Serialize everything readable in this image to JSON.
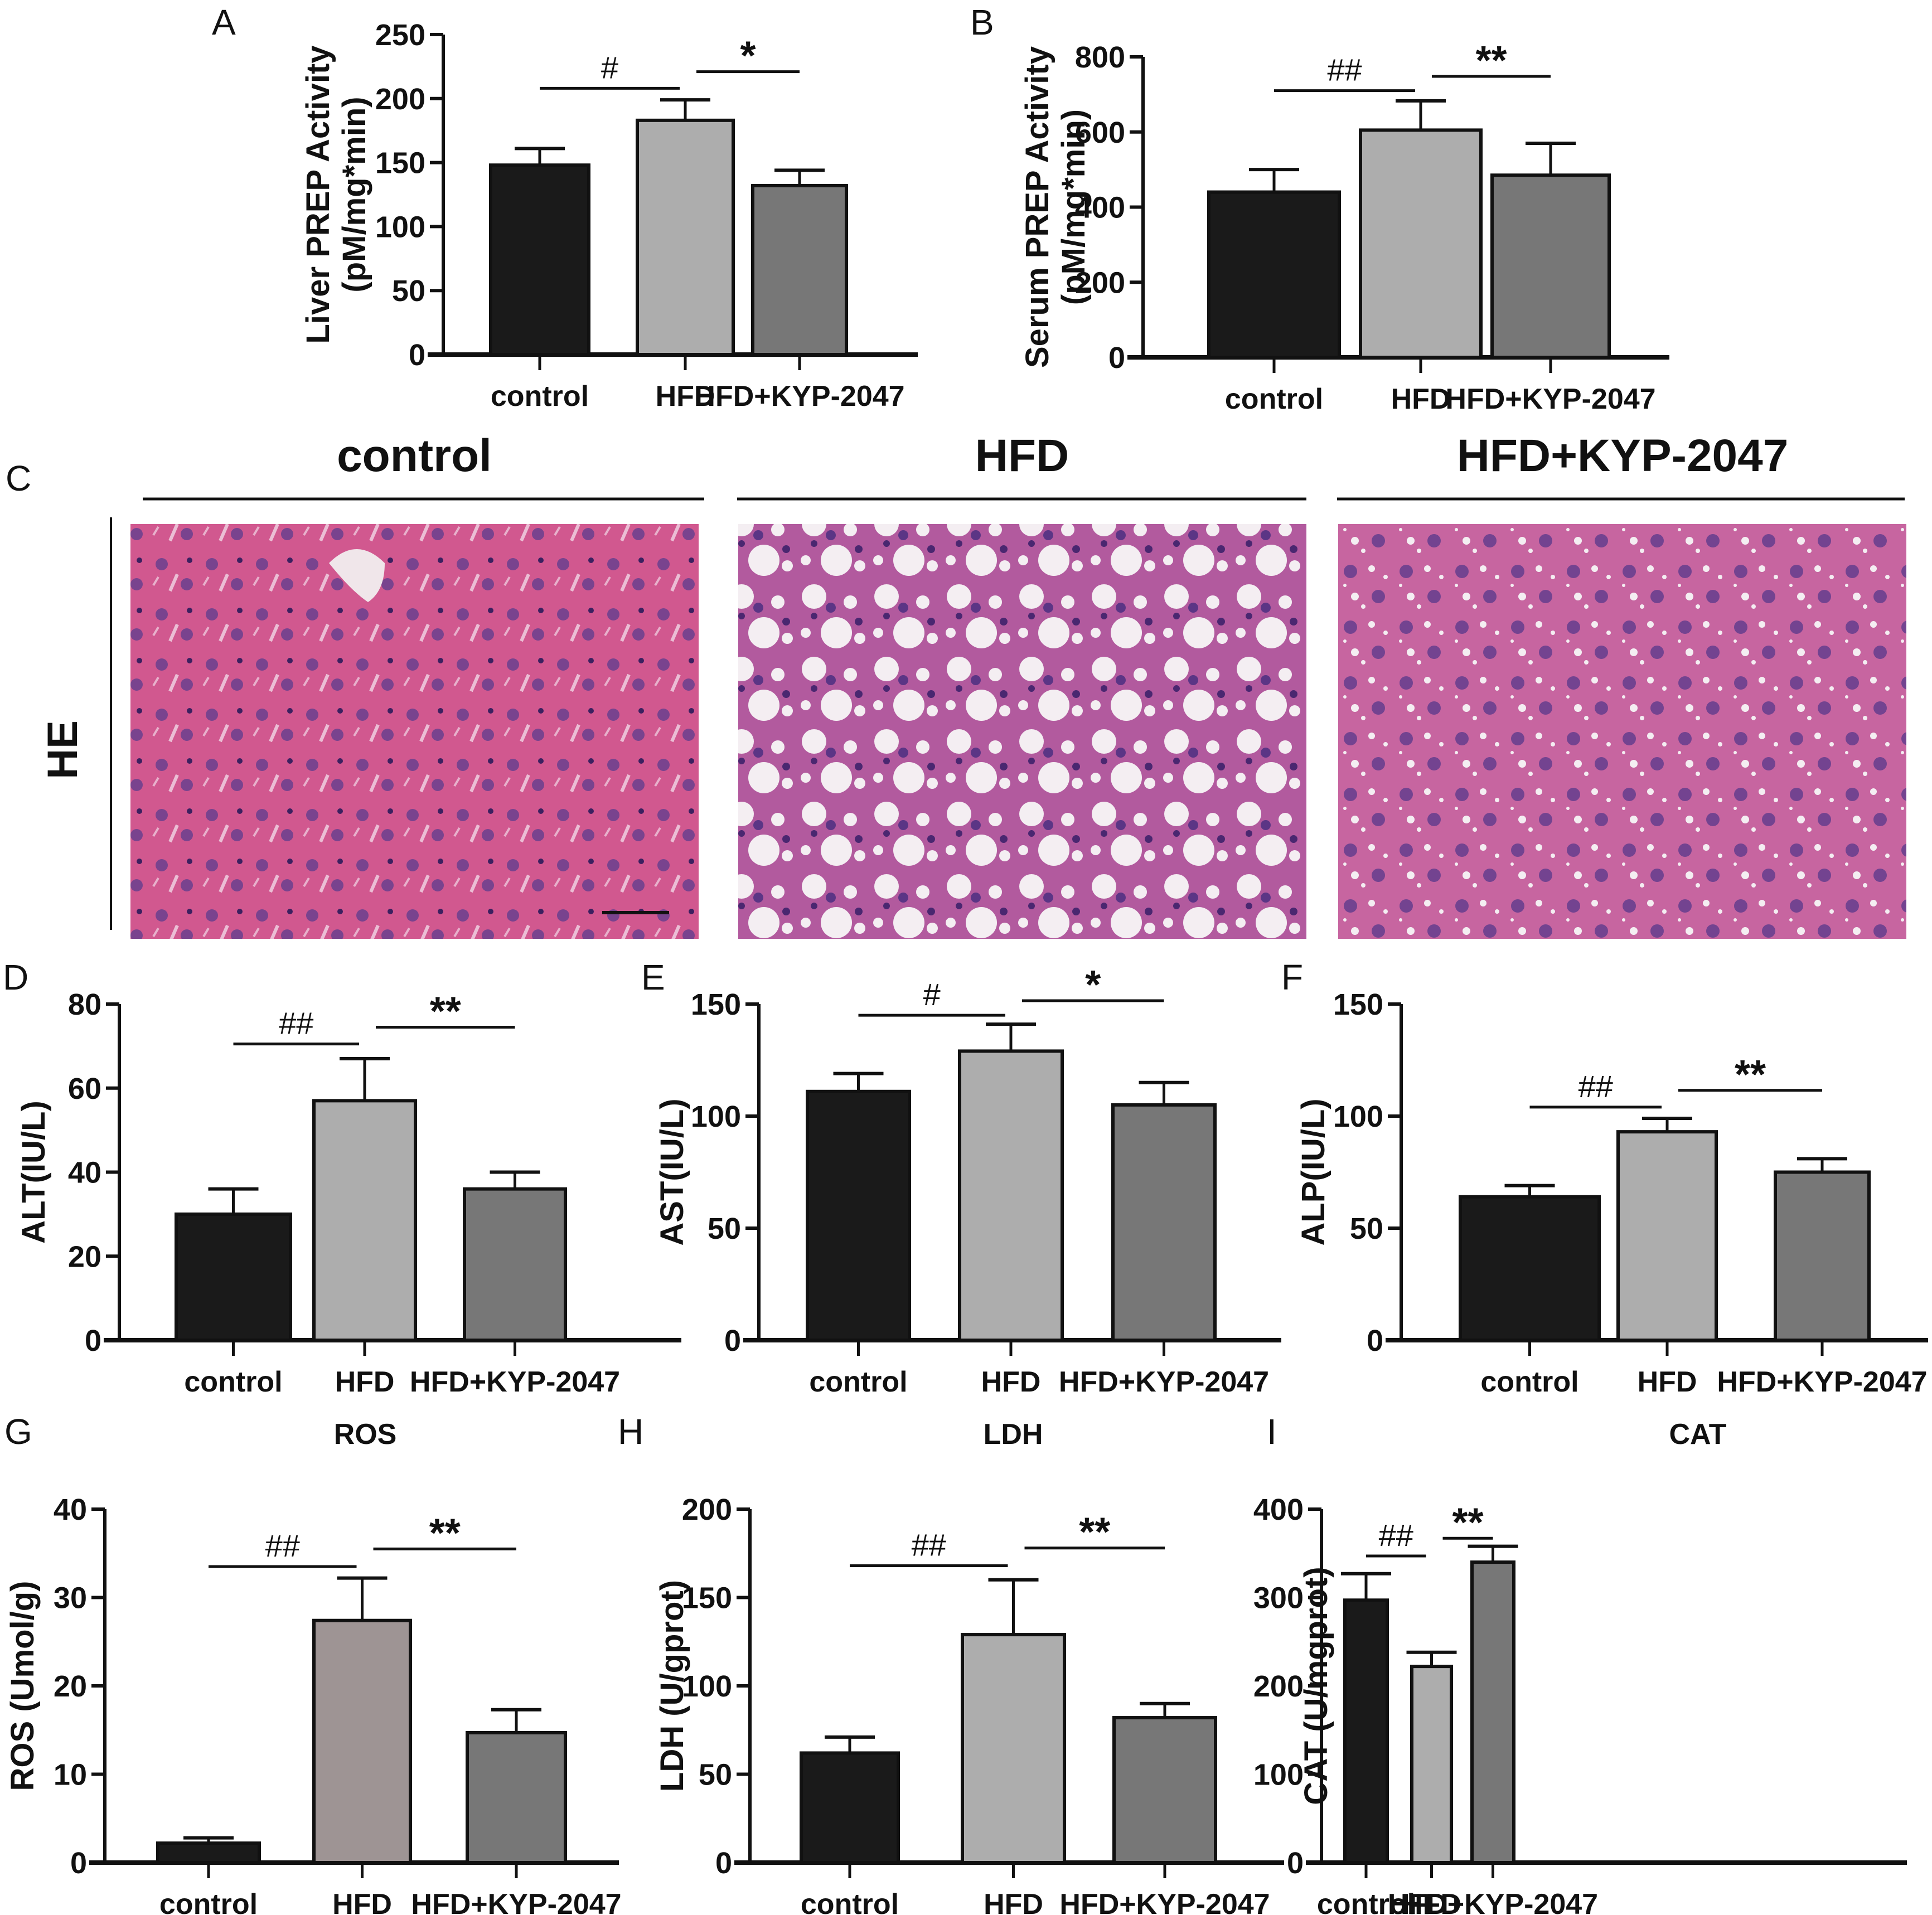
{
  "figure": {
    "colors": {
      "control": "#1a1a1a",
      "hfd": "#adadad",
      "hfd_ros": "#9e9494",
      "kyp": "#777777",
      "axis": "#111111",
      "tissue_pink": "#d1588f",
      "nucleus_purple": "#6a3f8e",
      "fat_vacuole": "#f4eef2"
    },
    "histology": {
      "panel_letter": "C",
      "row_label": "HE",
      "columns": [
        {
          "title": "control",
          "description": "normal liver tissue, central vein, no lipid droplets"
        },
        {
          "title": "HFD",
          "description": "liver tissue with many large lipid vacuoles"
        },
        {
          "title": "HFD+KYP-2047",
          "description": "liver tissue with fewer, smaller lipid vacuoles"
        }
      ],
      "scale_bar": "scale bar on control image"
    }
  },
  "chart_data": [
    {
      "panel": "A",
      "type": "bar",
      "title": "",
      "ylabel": "Liver PREP Activity (pM/mg*min)",
      "ylabel_lines": [
        "Liver PREP Activity",
        "(pM/mg*min)"
      ],
      "categories": [
        "control",
        "HFD",
        "HFD+KYP-2047"
      ],
      "values": [
        148,
        183,
        132
      ],
      "errors": [
        13,
        16,
        12
      ],
      "ylim": [
        0,
        250
      ],
      "yticks": [
        0,
        50,
        100,
        150,
        200,
        250
      ],
      "significance": [
        {
          "from": 0,
          "to": 1,
          "label": "#",
          "y": 208
        },
        {
          "from": 1,
          "to": 2,
          "label": "*",
          "y": 221
        }
      ],
      "geom": {
        "axis_x": 795,
        "y_top": 62,
        "y_zero": 636,
        "axis_end": 1646,
        "bars": [
          [
            880,
            1056
          ],
          [
            1143,
            1315
          ],
          [
            1350,
            1518
          ]
        ],
        "letter_x": 380,
        "letter_y": 62,
        "label_x": 590,
        "label2_x": 655
      }
    },
    {
      "panel": "B",
      "type": "bar",
      "title": "",
      "ylabel": "Serum PREP Activity (pM/mg*min)",
      "ylabel_lines": [
        "Serum PREP Activity",
        "(pM/mg*min)"
      ],
      "categories": [
        "control",
        "HFD",
        "HFD+KYP-2047"
      ],
      "values": [
        440,
        605,
        485
      ],
      "errors": [
        60,
        78,
        85
      ],
      "ylim": [
        0,
        800
      ],
      "yticks": [
        0,
        200,
        400,
        600,
        800
      ],
      "significance": [
        {
          "from": 0,
          "to": 1,
          "label": "##",
          "y": 710
        },
        {
          "from": 1,
          "to": 2,
          "label": "**",
          "y": 748
        }
      ],
      "geom": {
        "axis_x": 2050,
        "y_top": 102,
        "y_zero": 641,
        "axis_end": 2994,
        "bars": [
          [
            2168,
            2402
          ],
          [
            2440,
            2656
          ],
          [
            2676,
            2886
          ]
        ],
        "letter_x": 1740,
        "letter_y": 62,
        "label_x": 1880,
        "label2_x": 1945
      }
    },
    {
      "panel": "D",
      "type": "bar",
      "title": "",
      "ylabel": "ALT(IU/L)",
      "ylabel_lines": [
        "ALT(IU/L)"
      ],
      "categories": [
        "control",
        "HFD",
        "HFD+KYP-2047"
      ],
      "values": [
        30,
        57,
        36
      ],
      "errors": [
        6,
        10,
        4
      ],
      "ylim": [
        0,
        80
      ],
      "yticks": [
        0,
        20,
        40,
        60,
        80
      ],
      "significance": [
        {
          "from": 0,
          "to": 1,
          "label": "##",
          "y": 70.5
        },
        {
          "from": 1,
          "to": 2,
          "label": "**",
          "y": 74.5
        }
      ],
      "geom": {
        "axis_x": 214,
        "y_top": 1801,
        "y_zero": 2404,
        "axis_end": 1222,
        "bars": [
          [
            316,
            521
          ],
          [
            563,
            745
          ],
          [
            833,
            1014
          ]
        ],
        "letter_x": 5,
        "letter_y": 1775,
        "label_x": 80,
        "label2_x": 0
      }
    },
    {
      "panel": "E",
      "type": "bar",
      "title": "",
      "ylabel": "AST(IU/L)",
      "ylabel_lines": [
        "AST(IU/L)"
      ],
      "categories": [
        "control",
        "HFD",
        "HFD+KYP-2047"
      ],
      "values": [
        111,
        129,
        105
      ],
      "errors": [
        8,
        12,
        10
      ],
      "ylim": [
        0,
        150
      ],
      "yticks": [
        0,
        50,
        100,
        150
      ],
      "significance": [
        {
          "from": 0,
          "to": 1,
          "label": "#",
          "y": 145
        },
        {
          "from": 1,
          "to": 2,
          "label": "*",
          "y": 151.5
        }
      ],
      "geom": {
        "axis_x": 1361,
        "y_top": 1801,
        "y_zero": 2404,
        "axis_end": 2298,
        "bars": [
          [
            1448,
            1631
          ],
          [
            1721,
            1905
          ],
          [
            1996,
            2179
          ]
        ],
        "letter_x": 1150,
        "letter_y": 1775,
        "label_x": 1225,
        "label2_x": 0
      }
    },
    {
      "panel": "F",
      "type": "bar",
      "title": "",
      "ylabel": "ALP(IU/L)",
      "ylabel_lines": [
        "ALP(IU/L)"
      ],
      "categories": [
        "control",
        "HFD",
        "HFD+KYP-2047"
      ],
      "values": [
        64,
        93,
        75
      ],
      "errors": [
        5,
        6,
        6
      ],
      "ylim": [
        0,
        150
      ],
      "yticks": [
        0,
        50,
        100,
        150
      ],
      "significance": [
        {
          "from": 0,
          "to": 1,
          "label": "##",
          "y": 104
        },
        {
          "from": 1,
          "to": 2,
          "label": "**",
          "y": 111.5
        }
      ],
      "geom": {
        "axis_x": 2513,
        "y_top": 1801,
        "y_zero": 2404,
        "axis_end": 3458,
        "bars": [
          [
            2619,
            2868
          ],
          [
            2902,
            3078
          ],
          [
            3184,
            3352
          ]
        ],
        "letter_x": 2298,
        "letter_y": 1775,
        "label_x": 2375,
        "label2_x": 0
      }
    },
    {
      "panel": "G",
      "type": "bar",
      "title": "ROS",
      "ylabel": "ROS (Umol/g)",
      "ylabel_lines": [
        "ROS (Umol/g)"
      ],
      "categories": [
        "control",
        "HFD",
        "HFD+KYP-2047"
      ],
      "values": [
        2.2,
        27.4,
        14.7
      ],
      "errors": [
        0.6,
        4.8,
        2.6
      ],
      "ylim": [
        0,
        40
      ],
      "yticks": [
        0,
        10,
        20,
        30,
        40
      ],
      "significance": [
        {
          "from": 0,
          "to": 1,
          "label": "##",
          "y": 33.5
        },
        {
          "from": 1,
          "to": 2,
          "label": "**",
          "y": 35.5
        }
      ],
      "hfd_color_key": "hfd_ros",
      "geom": {
        "axis_x": 188,
        "y_top": 2707,
        "y_zero": 3341,
        "axis_end": 1110,
        "bars": [
          [
            283,
            465
          ],
          [
            563,
            736
          ],
          [
            838,
            1014
          ]
        ],
        "letter_x": 8,
        "letter_y": 2590,
        "label_x": 60,
        "label2_x": 0,
        "title_x": 655,
        "title_y": 2590
      }
    },
    {
      "panel": "H",
      "type": "bar",
      "title": "LDH",
      "ylabel": "LDH (U/gprot)",
      "ylabel_lines": [
        "LDH (U/gprot)"
      ],
      "categories": [
        "control",
        "HFD",
        "HFD+KYP-2047"
      ],
      "values": [
        62,
        129,
        82
      ],
      "errors": [
        9,
        31,
        8
      ],
      "ylim": [
        0,
        200
      ],
      "yticks": [
        0,
        50,
        100,
        150,
        200
      ],
      "significance": [
        {
          "from": 0,
          "to": 1,
          "label": "##",
          "y": 168
        },
        {
          "from": 1,
          "to": 2,
          "label": "**",
          "y": 178
        }
      ],
      "geom": {
        "axis_x": 1345,
        "y_top": 2707,
        "y_zero": 3341,
        "axis_end": 2303,
        "bars": [
          [
            1437,
            1611
          ],
          [
            1726,
            1909
          ],
          [
            1998,
            2180
          ]
        ],
        "letter_x": 1108,
        "letter_y": 2590,
        "label_x": 1225,
        "label2_x": 0,
        "title_x": 1817,
        "title_y": 2590
      }
    },
    {
      "panel": "I",
      "type": "bar",
      "title": "CAT",
      "ylabel": "CAT (U/mgprot)",
      "ylabel_lines": [
        "CAT (U/mgprot)"
      ],
      "categories": [
        "control",
        "HFD",
        "HFD+KYP-2047"
      ],
      "values": [
        297,
        222,
        340
      ],
      "errors": [
        30,
        16,
        18
      ],
      "ylim": [
        0,
        400
      ],
      "yticks": [
        0,
        100,
        200,
        300,
        400
      ],
      "significance": [
        {
          "from": 0,
          "to": 1,
          "label": "##",
          "y": 347
        },
        {
          "from": 1,
          "to": 2,
          "label": "**",
          "y": 367
        }
      ],
      "geom": {
        "axis_x": 2370,
        "y_top": 2707,
        "y_zero": 3341,
        "axis_end": 3420,
        "bars": [
          [
            2412,
            2488
          ],
          [
            2532,
            2603
          ],
          [
            2640,
            2715
          ]
        ],
        "letter_x": 2272,
        "letter_y": 2590,
        "label_x": 2380,
        "label2_x": 0,
        "title_x": 3045,
        "title_y": 2590
      }
    }
  ]
}
